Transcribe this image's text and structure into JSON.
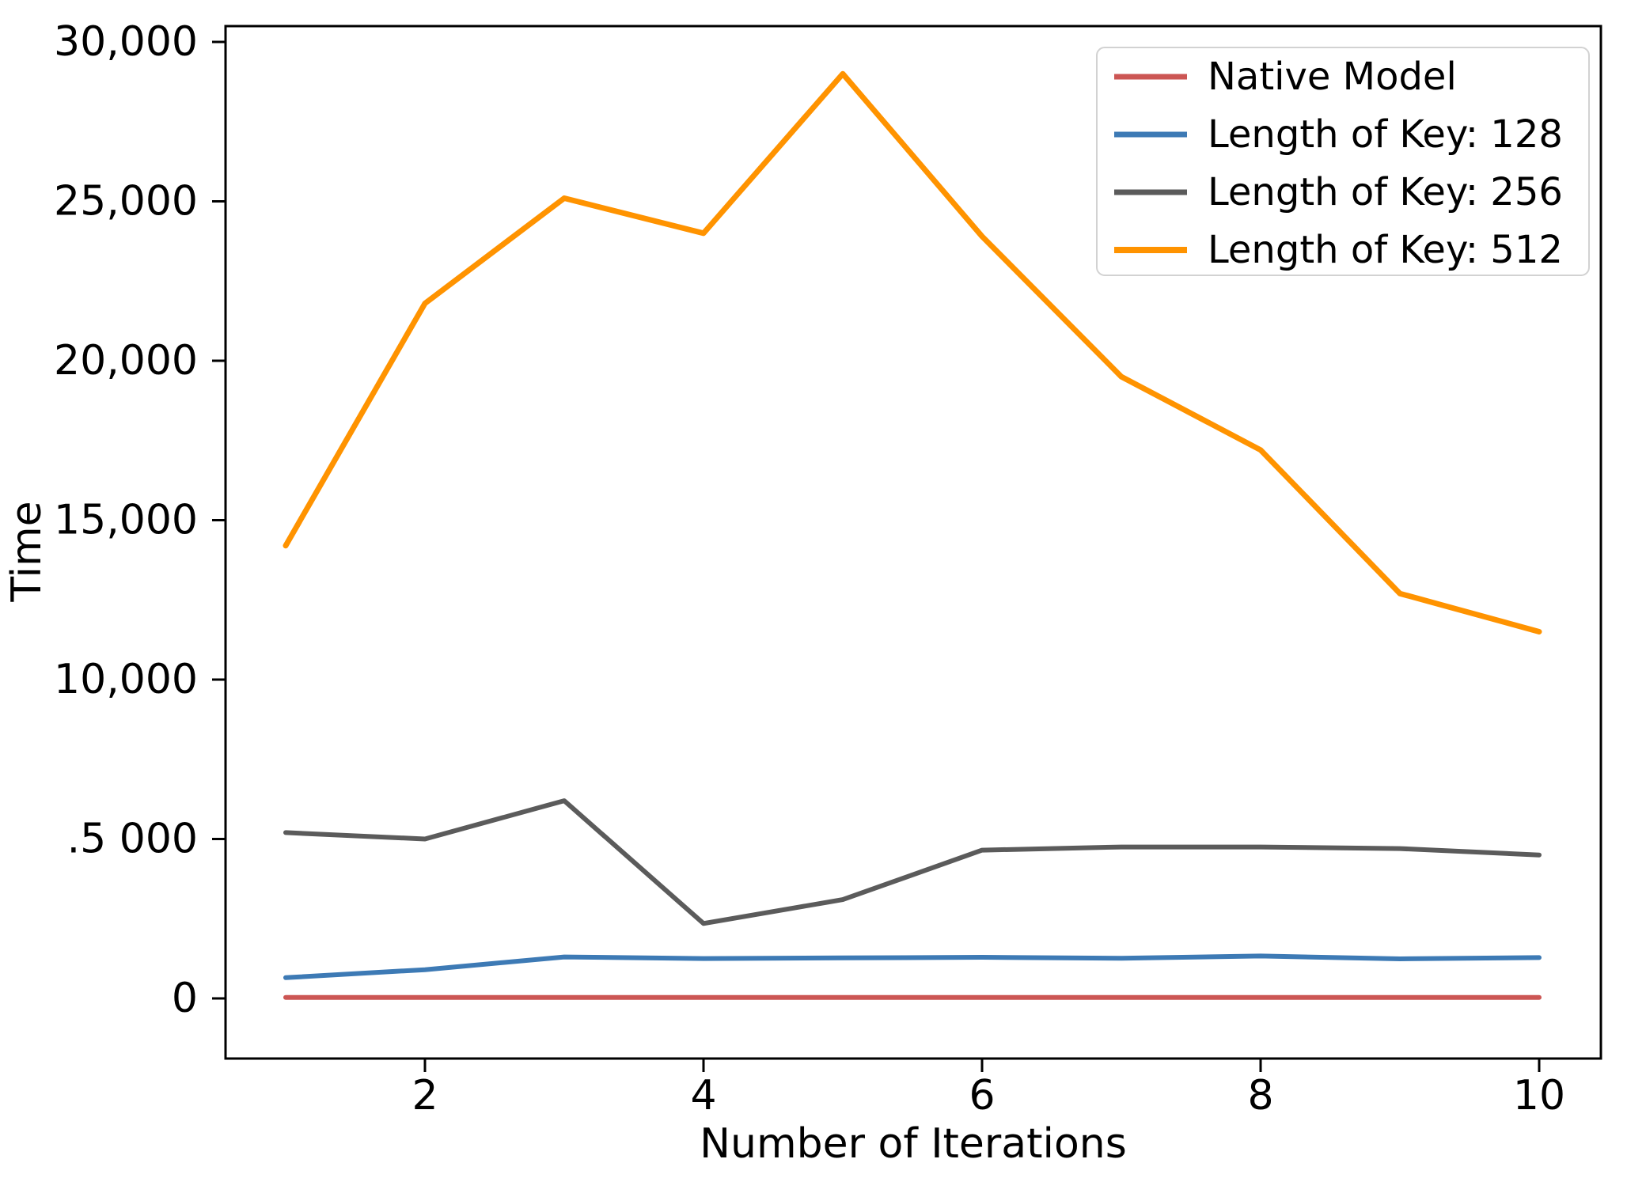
{
  "chart_data": {
    "type": "line",
    "title": "",
    "xlabel": "Number of Iterations",
    "ylabel": "Time",
    "x": [
      1,
      2,
      3,
      4,
      5,
      6,
      7,
      8,
      9,
      10
    ],
    "series": [
      {
        "name": "Native Model",
        "color": "#cc5654",
        "width": 6,
        "values": [
          30,
          30,
          30,
          30,
          30,
          30,
          30,
          30,
          30,
          30
        ]
      },
      {
        "name": "Length of Key: 128",
        "color": "#3d7ab5",
        "width": 6,
        "values": [
          650,
          900,
          1300,
          1250,
          1270,
          1290,
          1260,
          1330,
          1240,
          1280
        ]
      },
      {
        "name": "Length of Key: 256",
        "color": "#5b5b5b",
        "width": 6,
        "values": [
          5200,
          5000,
          6200,
          2350,
          3100,
          4650,
          4750,
          4750,
          4700,
          4500
        ]
      },
      {
        "name": "Length of Key: 512",
        "color": "#ff9300",
        "width": 7,
        "values": [
          14200,
          21800,
          25100,
          24000,
          29000,
          23900,
          19500,
          17200,
          12700,
          11500
        ]
      }
    ],
    "x_ticks": [
      {
        "value": 2,
        "label": "2"
      },
      {
        "value": 4,
        "label": "4"
      },
      {
        "value": 6,
        "label": "6"
      },
      {
        "value": 8,
        "label": "8"
      },
      {
        "value": 10,
        "label": "10"
      }
    ],
    "y_ticks": [
      {
        "value": 0,
        "label": "0"
      },
      {
        "value": 5000,
        "label": ".5 000"
      },
      {
        "value": 10000,
        "label": "10,000"
      },
      {
        "value": 15000,
        "label": "15,000"
      },
      {
        "value": 20000,
        "label": "20,000"
      },
      {
        "value": 25000,
        "label": "25,000"
      },
      {
        "value": 30000,
        "label": "30,000"
      }
    ],
    "xlim": [
      0.57,
      10.44
    ],
    "ylim": [
      -1900,
      30500
    ],
    "grid": false,
    "legend": {
      "position": "upper right",
      "entries": [
        "Native Model",
        "Length of Key: 128",
        "Length of Key: 256",
        "Length of Key: 512"
      ]
    }
  }
}
